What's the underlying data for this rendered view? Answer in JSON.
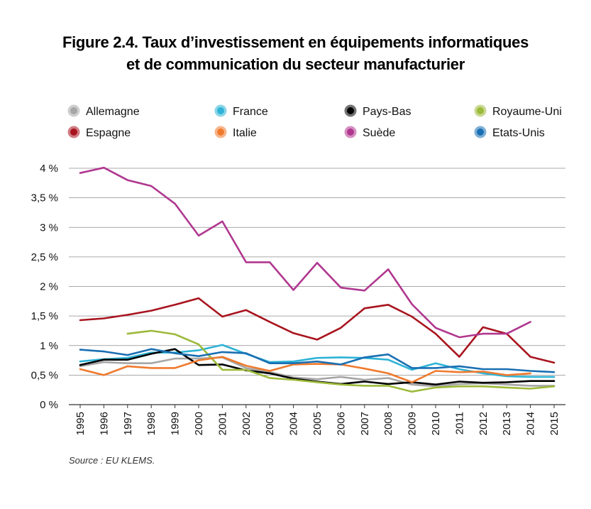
{
  "title_line1": "Figure 2.4. Taux d’investissement en équipements informatiques",
  "title_line2": "et de communication du secteur manufacturier",
  "source": "Source : EU KLEMS.",
  "chart_data": {
    "type": "line",
    "x": [
      "1995",
      "1996",
      "1997",
      "1998",
      "1999",
      "2000",
      "2001",
      "2002",
      "2003",
      "2004",
      "2005",
      "2006",
      "2007",
      "2008",
      "2009",
      "2010",
      "2011",
      "2012",
      "2013",
      "2014",
      "2015"
    ],
    "y_ticks": [
      "0 %",
      "0,5 %",
      "1 %",
      "1,5 %",
      "2 %",
      "2,5 %",
      "3 %",
      "3,5 %",
      "4 %"
    ],
    "ylim": [
      0,
      4
    ],
    "grid": "horizontal",
    "legend_position": "top",
    "series": [
      {
        "name": "Allemagne",
        "color": "#a6a6a6",
        "values": [
          0.65,
          0.72,
          0.7,
          0.7,
          0.78,
          0.78,
          0.8,
          0.62,
          0.55,
          0.46,
          0.43,
          0.47,
          0.42,
          0.45,
          0.34,
          0.31,
          0.35,
          0.36,
          0.34,
          0.32,
          0.32
        ]
      },
      {
        "name": "France",
        "color": "#2eb3d6",
        "values": [
          0.73,
          0.77,
          0.79,
          0.88,
          0.88,
          0.92,
          1.01,
          0.86,
          0.72,
          0.73,
          0.79,
          0.8,
          0.79,
          0.76,
          0.59,
          0.7,
          0.6,
          0.53,
          0.48,
          0.47,
          0.47
        ]
      },
      {
        "name": "Pays-Bas",
        "color": "#000000",
        "values": [
          0.67,
          0.76,
          0.76,
          0.86,
          0.94,
          0.67,
          0.68,
          0.58,
          0.53,
          0.44,
          0.39,
          0.35,
          0.39,
          0.35,
          0.38,
          0.34,
          0.39,
          0.37,
          0.38,
          0.4,
          0.4
        ]
      },
      {
        "name": "Royaume-Uni",
        "color": "#9cba3a",
        "values": [
          null,
          null,
          1.2,
          1.25,
          1.19,
          1.02,
          0.59,
          0.59,
          0.45,
          0.42,
          0.38,
          0.34,
          0.32,
          0.32,
          0.22,
          0.29,
          0.31,
          0.31,
          0.29,
          0.27,
          0.31
        ]
      },
      {
        "name": "Espagne",
        "color": "#a8141e",
        "values": [
          1.43,
          1.46,
          1.52,
          1.59,
          1.69,
          1.8,
          1.49,
          1.6,
          1.4,
          1.21,
          1.1,
          1.3,
          1.63,
          1.69,
          1.49,
          1.2,
          0.81,
          1.31,
          1.2,
          0.81,
          0.71
        ]
      },
      {
        "name": "Italie",
        "color": "#ef7a2e",
        "values": [
          0.6,
          0.5,
          0.65,
          0.62,
          0.62,
          0.75,
          0.81,
          0.66,
          0.57,
          0.68,
          0.69,
          0.68,
          0.61,
          0.53,
          0.38,
          0.57,
          0.55,
          0.56,
          0.5,
          0.53,
          null
        ]
      },
      {
        "name": "Suède",
        "color": "#b0378f",
        "values": [
          3.92,
          4.01,
          3.8,
          3.7,
          3.4,
          2.86,
          3.1,
          2.41,
          2.41,
          1.94,
          2.4,
          1.98,
          1.93,
          2.29,
          1.7,
          1.3,
          1.14,
          1.2,
          1.2,
          1.4,
          null
        ]
      },
      {
        "name": "Etats-Unis",
        "color": "#1a6fb3",
        "values": [
          0.93,
          0.9,
          0.84,
          0.94,
          0.87,
          0.82,
          0.89,
          0.87,
          0.7,
          0.7,
          0.73,
          0.68,
          0.8,
          0.85,
          0.62,
          0.62,
          0.65,
          0.6,
          0.6,
          0.57,
          0.55
        ]
      }
    ]
  }
}
